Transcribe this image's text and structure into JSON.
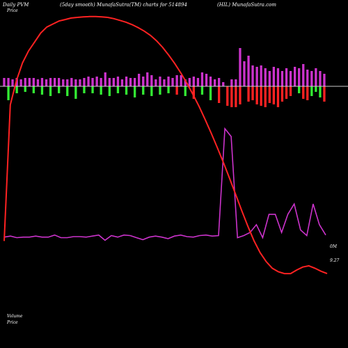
{
  "header": {
    "left": "Daily PVM",
    "center": "(5day smooth) MunafaSutra(TM) charts for 514894",
    "right": "(HIL) MunafaSutra.com"
  },
  "legend": {
    "price": "Price",
    "volume": "Volume",
    "price_bottom": "Price"
  },
  "colors": {
    "background": "#000000",
    "up_bar": "#cc33cc",
    "down_bar": "#ff2222",
    "green_bar": "#33ee33",
    "volume_line": "#cc33cc",
    "price_line": "#ff2222",
    "zero_line": "#cccccc"
  },
  "chart_data": {
    "type": "bar",
    "title": "",
    "series": [
      {
        "kind": "bar",
        "up": [
          12,
          12,
          10,
          12,
          10,
          12,
          12,
          12,
          10,
          12,
          10,
          12,
          12,
          12,
          10,
          10,
          12,
          10,
          10,
          12,
          14,
          12,
          14,
          12,
          20,
          12,
          12,
          14,
          10,
          14,
          12,
          12,
          18,
          14,
          20,
          16,
          10,
          14,
          10,
          14,
          12,
          16,
          16,
          10,
          12,
          14,
          12,
          20,
          18,
          14,
          10,
          12,
          6,
          0,
          10,
          10,
          55,
          36,
          44,
          30,
          28,
          30,
          26,
          22,
          28,
          26,
          22,
          26,
          22,
          28,
          26,
          32,
          24,
          22,
          26,
          22,
          18
        ],
        "down": [
          0,
          20,
          0,
          10,
          0,
          8,
          0,
          10,
          0,
          12,
          0,
          14,
          0,
          10,
          0,
          14,
          0,
          18,
          0,
          10,
          0,
          10,
          0,
          12,
          0,
          14,
          0,
          10,
          0,
          12,
          0,
          16,
          0,
          12,
          0,
          14,
          0,
          12,
          0,
          10,
          0,
          12,
          0,
          14,
          0,
          18,
          0,
          12,
          0,
          20,
          0,
          24,
          0,
          28,
          30,
          30,
          26,
          0,
          22,
          20,
          26,
          28,
          30,
          24,
          26,
          30,
          22,
          18,
          14,
          0,
          10,
          18,
          20,
          14,
          8,
          16,
          22
        ],
        "down_green": [
          false,
          true,
          false,
          true,
          false,
          true,
          false,
          true,
          false,
          true,
          false,
          true,
          false,
          true,
          false,
          true,
          false,
          true,
          false,
          true,
          false,
          true,
          false,
          true,
          false,
          true,
          false,
          true,
          false,
          true,
          false,
          true,
          false,
          true,
          false,
          true,
          false,
          true,
          false,
          true,
          false,
          false,
          false,
          true,
          false,
          false,
          false,
          true,
          false,
          true,
          false,
          false,
          false,
          false,
          false,
          false,
          false,
          false,
          false,
          false,
          false,
          false,
          false,
          false,
          false,
          false,
          false,
          false,
          false,
          false,
          true,
          false,
          false,
          true,
          true,
          true,
          false
        ]
      },
      {
        "kind": "line",
        "values": [
          0.92,
          0.96,
          0.9,
          0.92,
          0.92,
          0.96,
          0.92,
          0.92,
          1.0,
          0.9,
          0.9,
          0.94,
          0.94,
          0.92,
          0.96,
          1.0,
          0.8,
          0.98,
          0.92,
          1.0,
          0.98,
          0.9,
          0.82,
          0.92,
          0.96,
          0.92,
          0.86,
          0.96,
          1.0,
          0.94,
          0.92,
          0.98,
          1.0,
          0.96,
          0.98,
          5.1,
          4.8,
          0.9,
          0.98,
          1.1,
          1.4,
          0.9,
          1.8,
          1.8,
          1.1,
          1.8,
          2.2,
          1.2,
          0.98,
          2.2,
          1.4,
          1.0
        ]
      },
      {
        "kind": "line",
        "values": [
          12.5,
          58,
          66,
          72,
          76,
          79,
          82,
          84,
          85,
          86,
          86.5,
          87,
          87.2,
          87.4,
          87.5,
          87.5,
          87.4,
          87.2,
          86.8,
          86.2,
          85.6,
          84.8,
          83.8,
          82.6,
          81.2,
          79.4,
          77.2,
          74.6,
          71.8,
          68.6,
          65.2,
          61.4,
          57.4,
          53,
          48.4,
          43.6,
          38.6,
          33.4,
          28,
          22.6,
          17.4,
          12.6,
          8.6,
          5.6,
          3.4,
          2.2,
          1.6,
          1.6,
          2.8,
          3.8,
          4.2,
          3.4,
          2.4,
          1.6
        ]
      }
    ],
    "value_labels": [
      "0M",
      "9.27"
    ]
  }
}
